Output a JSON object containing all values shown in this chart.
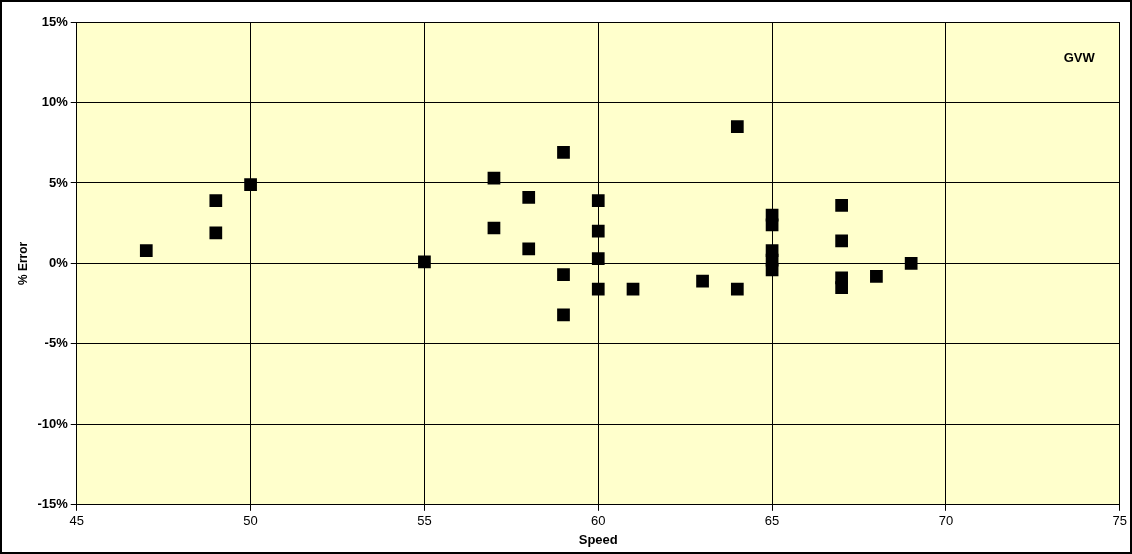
{
  "chart_data": {
    "type": "scatter",
    "xlabel": "Speed",
    "ylabel": "% Error",
    "annotations": [
      "GVW"
    ],
    "x": [
      47,
      49,
      49,
      50,
      55,
      57,
      57,
      58,
      58,
      59,
      59,
      59,
      60,
      60,
      60,
      60,
      61,
      63,
      64,
      64,
      65,
      65,
      65,
      65,
      65,
      67,
      67,
      67,
      67,
      68,
      69
    ],
    "values": [
      0.8,
      3.9,
      1.9,
      4.9,
      0.1,
      5.3,
      2.2,
      4.1,
      0.9,
      6.9,
      -0.7,
      -3.2,
      3.9,
      2.0,
      0.3,
      -1.6,
      -1.6,
      -1.1,
      8.5,
      -1.6,
      3.0,
      2.4,
      0.8,
      0.2,
      -0.4,
      3.6,
      1.4,
      -0.9,
      -1.5,
      -0.8,
      0
    ],
    "color": "#000000",
    "marker": "square",
    "grid": true,
    "xlim": [
      45,
      75
    ],
    "xticks": [
      45,
      50,
      55,
      60,
      65,
      70,
      75
    ],
    "ylim": [
      -15,
      15
    ],
    "yticks": [
      {
        "value": -15,
        "label": "-15%"
      },
      {
        "value": -10,
        "label": "-10%"
      },
      {
        "value": -5,
        "label": "-5%"
      },
      {
        "value": 0,
        "label": "0%"
      },
      {
        "value": 5,
        "label": "5%"
      },
      {
        "value": 10,
        "label": "10%"
      },
      {
        "value": 15,
        "label": "15%"
      }
    ]
  }
}
